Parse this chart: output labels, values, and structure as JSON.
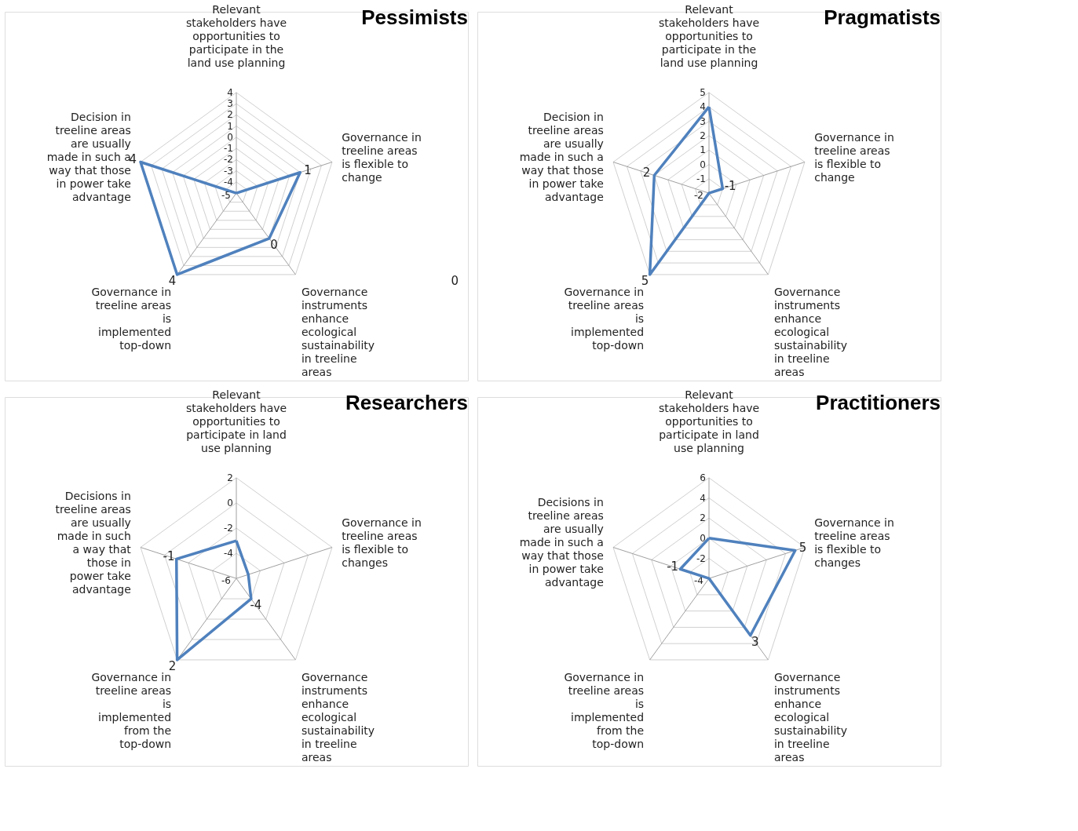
{
  "chart_data": [
    {
      "type": "radar",
      "title": "Pessimists",
      "categories": [
        "Relevant\nstakeholders have\nopportunities to\nparticipate in the\nland use planning",
        "Governance in\ntreeline areas\nis flexible to\nchange",
        "Governance\ninstruments\nenhance\necological\nsustainability\nin treeline\nareas",
        "Governance in\ntreeline areas\nis\nimplemented\ntop-down",
        "Decision in\ntreeline areas\nare usually\nmade in such a\nway that those\nin power take\nadvantage"
      ],
      "series": [
        {
          "color": "#4f81bd",
          "values": [
            -5,
            1,
            0,
            4,
            4
          ],
          "value_labels": [
            null,
            "1",
            "0",
            "4",
            "4"
          ]
        }
      ],
      "ylim": [
        -5,
        4
      ],
      "yticks": [
        -5,
        -4,
        -3,
        -2,
        -1,
        0,
        1,
        2,
        3,
        4
      ],
      "grid": true,
      "annotations": [
        "0"
      ]
    },
    {
      "type": "radar",
      "title": "Pragmatists",
      "categories": [
        "Relevant\nstakeholders have\nopportunities to\nparticipate in the\nland use planning",
        "Governance in\ntreeline areas\nis flexible to\nchange",
        "Governance\ninstruments\nenhance\necological\nsustainability\nin treeline\nareas",
        "Governance in\ntreeline areas\nis\nimplemented\ntop-down",
        "Decision in\ntreeline areas\nare usually\nmade in such a\nway that those\nin power take\nadvantage"
      ],
      "series": [
        {
          "color": "#4f81bd",
          "values": [
            4,
            -1,
            -2,
            5,
            2
          ],
          "value_labels": [
            null,
            "-1",
            null,
            "5",
            "2"
          ]
        }
      ],
      "ylim": [
        -2,
        5
      ],
      "yticks": [
        -2,
        -1,
        0,
        1,
        2,
        3,
        4,
        5
      ],
      "grid": true
    },
    {
      "type": "radar",
      "title": "Researchers",
      "categories": [
        "Relevant\nstakeholders have\nopportunities to\nparticipate in land\nuse planning",
        "Governance in\ntreeline areas\nis flexible to\nchanges",
        "Governance\ninstruments\nenhance\necological\nsustainability\nin treeline\nareas",
        "Governance in\ntreeline areas\nis\nimplemented\nfrom the\ntop-down",
        "Decisions in\ntreeline areas\nare usually\nmade in such\na way that\nthose in\npower take\nadvantage"
      ],
      "series": [
        {
          "color": "#4f81bd",
          "values": [
            -3,
            -5,
            -4,
            2,
            -1
          ],
          "value_labels": [
            null,
            null,
            "-4",
            "2",
            "-1"
          ]
        }
      ],
      "ylim": [
        -6,
        2
      ],
      "yticks": [
        -6,
        -4,
        -2,
        0,
        2
      ],
      "grid": true
    },
    {
      "type": "radar",
      "title": "Practitioners",
      "categories": [
        "Relevant\nstakeholders have\nopportunities to\nparticipate in land\nuse planning",
        "Governance in\ntreeline areas\nis flexible to\nchanges",
        "Governance\ninstruments\nenhance\necological\nsustainability\nin treeline\nareas",
        "Governance in\ntreeline areas\nis\nimplemented\nfrom the\ntop-down",
        "Decisions in\ntreeline areas\nare usually\nmade in such a\nway that those\nin power take\nadvantage"
      ],
      "series": [
        {
          "color": "#4f81bd",
          "values": [
            0,
            5,
            3,
            -4,
            -1
          ],
          "value_labels": [
            null,
            "5",
            "3",
            null,
            "-1"
          ]
        }
      ],
      "ylim": [
        -4,
        6
      ],
      "yticks": [
        -4,
        -2,
        0,
        2,
        4,
        6
      ],
      "grid": true
    }
  ]
}
